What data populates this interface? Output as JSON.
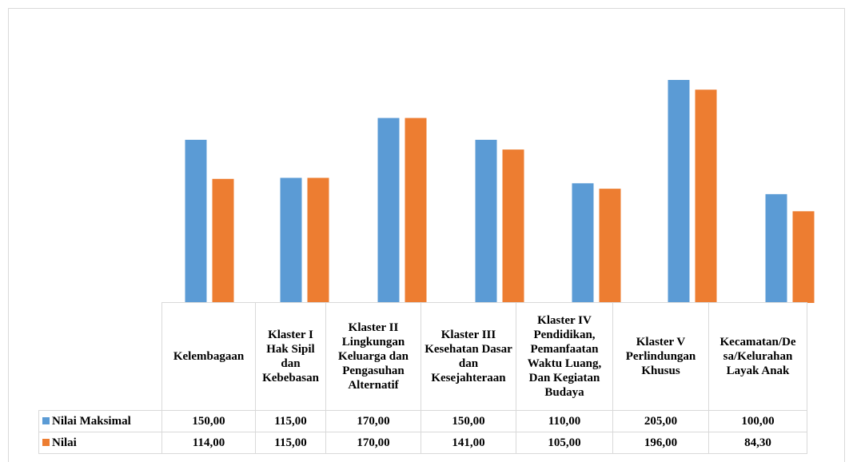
{
  "chart_data": {
    "type": "bar",
    "categories": [
      "Kelembagaan",
      "Klaster I Hak Sipil dan Kebebasan",
      "Klaster II Lingkungan Keluarga dan Pengasuhan Alternatif",
      "Klaster III Kesehatan Dasar dan Kesejahteraan",
      "Klaster IV Pendidikan, Pemanfaatan Waktu Luang, Dan Kegiatan Budaya",
      "Klaster V Perlindungan Khusus",
      "Kecamatan/Desa/Kelurahan Layak Anak"
    ],
    "category_labels": [
      "Kelembagaan",
      "Klaster I Hak Sipil dan Kebebasan",
      "Klaster II Lingkungan Keluarga dan Pengasuhan Alternatif",
      "Klaster III Kesehatan Dasar dan Kesejahteraan",
      "Klaster IV Pendidikan, Pemanfaatan Waktu Luang, Dan Kegiatan Budaya",
      "Klaster V Perlindungan Khusus",
      "Kecamatan/De sa/Kelurahan Layak Anak"
    ],
    "series": [
      {
        "name": "Nilai Maksimal",
        "color": "#5b9bd5",
        "values": [
          150,
          115,
          170,
          150,
          110,
          205,
          100
        ],
        "labels": [
          "150,00",
          "115,00",
          "170,00",
          "150,00",
          "110,00",
          "205,00",
          "100,00"
        ]
      },
      {
        "name": "Nilai",
        "color": "#ed7d31",
        "values": [
          114,
          115,
          170,
          141,
          105,
          196,
          84.3
        ],
        "labels": [
          "114,00",
          "115,00",
          "170,00",
          "141,00",
          "105,00",
          "196,00",
          "84,30"
        ]
      }
    ],
    "ylim": [
      0,
      205
    ],
    "grid": false,
    "legend": "data-table"
  }
}
